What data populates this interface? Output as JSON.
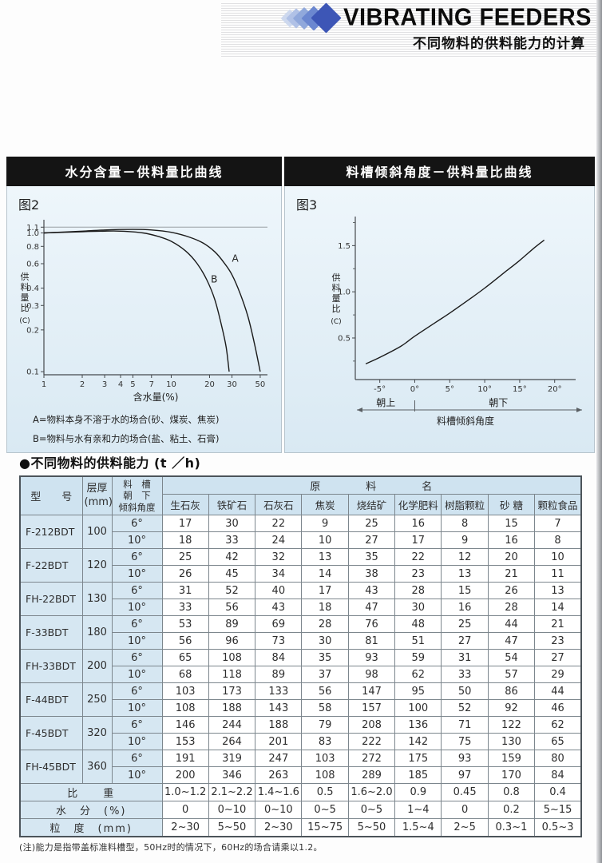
{
  "header": {
    "title": "VIBRATING FEEDERS",
    "subtitle": "不同物料的供料能力的计算"
  },
  "colors": {
    "diamond-colors": [
      "#cdd8ee",
      "#b0c1e6",
      "#90a8db",
      "#6b87d0",
      "#3d56b6"
    ]
  },
  "panels": [
    {
      "title": "水分含量－供料量比曲线",
      "figure_label": "图2",
      "notes": [
        "A=物料本身不溶于水的场合(砂、煤炭、焦炭)",
        "B=物料与水有亲和力的场合(盐、粘土、石膏)"
      ]
    },
    {
      "title": "料槽倾斜角度－供料量比曲线",
      "figure_label": "图3"
    }
  ],
  "chart_data": [
    {
      "type": "line",
      "title": "水分含量－供料量比曲线",
      "xlabel": "含水量(%)",
      "ylabel": "供料量比(C)",
      "xscale": "log",
      "yscale": "log",
      "xlim": [
        1,
        57
      ],
      "ylim": [
        0.095,
        1.18
      ],
      "xticks": [
        "1",
        "2",
        "3",
        "4",
        "5",
        "7",
        "10",
        "20",
        "30",
        "50"
      ],
      "yticks": [
        "1.1",
        "1.0",
        "0.8",
        "0.6",
        "0.4",
        "0.3",
        "0.2",
        "0.1"
      ],
      "gridlines_y": [
        1.1
      ],
      "legend_position": "none",
      "grid": "off",
      "series": [
        {
          "name": "A",
          "x": [
            1,
            2,
            3,
            5,
            7,
            10,
            14,
            18,
            22,
            26,
            30,
            35,
            40,
            45,
            50
          ],
          "y": [
            1.0,
            1.03,
            1.05,
            1.06,
            1.05,
            1.01,
            0.93,
            0.84,
            0.73,
            0.61,
            0.5,
            0.36,
            0.25,
            0.16,
            0.1
          ]
        },
        {
          "name": "B",
          "x": [
            1,
            2,
            3,
            4,
            6,
            8,
            10,
            13,
            16,
            19,
            22,
            25,
            27,
            28.5
          ],
          "y": [
            1.0,
            1.02,
            1.03,
            1.03,
            1.0,
            0.94,
            0.87,
            0.74,
            0.6,
            0.46,
            0.33,
            0.21,
            0.15,
            0.1
          ]
        }
      ],
      "annotations": [
        {
          "text": "A",
          "x": 30,
          "y": 0.62
        },
        {
          "text": "B",
          "x": 20.5,
          "y": 0.44
        }
      ]
    },
    {
      "type": "line",
      "title": "料槽倾斜角度－供料量比曲线",
      "xlabel": "料槽倾斜角度",
      "ylabel": "供料量比(C)",
      "xscale": "linear",
      "yscale": "linear",
      "xlim": [
        -8.5,
        23
      ],
      "ylim": [
        0.05,
        1.78
      ],
      "xticks": [
        "-5°",
        "0°",
        "5°",
        "10°",
        "15°",
        "20°"
      ],
      "yticks": [
        "0.5",
        "1.0",
        "1.5"
      ],
      "yticks_minor": [
        0.25,
        0.75,
        1.25,
        1.75
      ],
      "legend_position": "none",
      "grid": "off",
      "series": [
        {
          "name": "C",
          "x": [
            -7,
            -5,
            -2,
            0,
            3,
            5,
            8,
            10,
            13,
            15,
            17,
            18.5
          ],
          "y": [
            0.22,
            0.29,
            0.41,
            0.52,
            0.67,
            0.77,
            0.93,
            1.04,
            1.22,
            1.34,
            1.47,
            1.56
          ]
        }
      ],
      "direction_labels": {
        "left": "朝上",
        "right": "朝下"
      }
    }
  ],
  "table": {
    "section_title": "●不同物料的供料能力 (t ／h)",
    "headers": {
      "model": "型　　号",
      "layer": [
        "层厚",
        "(mm)"
      ],
      "angle": [
        "料　槽",
        "朝　下",
        "倾斜角度"
      ],
      "group": "原　　　　料　　　　名",
      "materials": [
        "生石灰",
        "铁矿石",
        "石灰石",
        "焦炭",
        "烧结矿",
        "化学肥料",
        "树脂颗粒",
        "砂 糖",
        "颗粒食品"
      ]
    },
    "rows": [
      {
        "model": "F-212BDT",
        "layer": "100",
        "angles": [
          {
            "deg": "6°",
            "values": [
              "17",
              "30",
              "22",
              "9",
              "25",
              "16",
              "8",
              "15",
              "7"
            ]
          },
          {
            "deg": "10°",
            "values": [
              "18",
              "33",
              "24",
              "10",
              "27",
              "17",
              "9",
              "16",
              "8"
            ]
          }
        ]
      },
      {
        "model": "F-22BDT",
        "layer": "120",
        "angles": [
          {
            "deg": "6°",
            "values": [
              "25",
              "42",
              "32",
              "13",
              "35",
              "22",
              "12",
              "20",
              "10"
            ]
          },
          {
            "deg": "10°",
            "values": [
              "26",
              "45",
              "34",
              "14",
              "38",
              "23",
              "13",
              "21",
              "11"
            ]
          }
        ]
      },
      {
        "model": "FH-22BDT",
        "layer": "130",
        "angles": [
          {
            "deg": "6°",
            "values": [
              "31",
              "52",
              "40",
              "17",
              "43",
              "28",
              "15",
              "26",
              "13"
            ]
          },
          {
            "deg": "10°",
            "values": [
              "33",
              "56",
              "43",
              "18",
              "47",
              "30",
              "16",
              "28",
              "14"
            ]
          }
        ]
      },
      {
        "model": "F-33BDT",
        "layer": "180",
        "angles": [
          {
            "deg": "6°",
            "values": [
              "53",
              "89",
              "69",
              "28",
              "76",
              "48",
              "25",
              "44",
              "21"
            ]
          },
          {
            "deg": "10°",
            "values": [
              "56",
              "96",
              "73",
              "30",
              "81",
              "51",
              "27",
              "47",
              "23"
            ]
          }
        ]
      },
      {
        "model": "FH-33BDT",
        "layer": "200",
        "angles": [
          {
            "deg": "6°",
            "values": [
              "65",
              "108",
              "84",
              "35",
              "93",
              "59",
              "31",
              "54",
              "27"
            ]
          },
          {
            "deg": "10°",
            "values": [
              "68",
              "118",
              "89",
              "37",
              "98",
              "62",
              "33",
              "57",
              "29"
            ]
          }
        ]
      },
      {
        "model": "F-44BDT",
        "layer": "250",
        "angles": [
          {
            "deg": "6°",
            "values": [
              "103",
              "173",
              "133",
              "56",
              "147",
              "95",
              "50",
              "86",
              "44"
            ]
          },
          {
            "deg": "10°",
            "values": [
              "108",
              "188",
              "143",
              "58",
              "157",
              "100",
              "52",
              "92",
              "46"
            ]
          }
        ]
      },
      {
        "model": "F-45BDT",
        "layer": "320",
        "angles": [
          {
            "deg": "6°",
            "values": [
              "146",
              "244",
              "188",
              "79",
              "208",
              "136",
              "71",
              "122",
              "62"
            ]
          },
          {
            "deg": "10°",
            "values": [
              "153",
              "264",
              "201",
              "83",
              "222",
              "142",
              "75",
              "130",
              "65"
            ]
          }
        ]
      },
      {
        "model": "FH-45BDT",
        "layer": "360",
        "angles": [
          {
            "deg": "6°",
            "values": [
              "191",
              "319",
              "247",
              "103",
              "272",
              "175",
              "93",
              "159",
              "80"
            ]
          },
          {
            "deg": "10°",
            "values": [
              "200",
              "346",
              "263",
              "108",
              "289",
              "185",
              "97",
              "170",
              "84"
            ]
          }
        ]
      }
    ],
    "summary_rows": [
      {
        "label": "比　　重",
        "values": [
          "1.0~1.2",
          "2.1~2.2",
          "1.4~1.6",
          "0.5",
          "1.6~2.0",
          "0.9",
          "0.45",
          "0.8",
          "0.4"
        ]
      },
      {
        "label": "水　分　(%)",
        "values": [
          "0",
          "0~10",
          "0~10",
          "0~5",
          "0~5",
          "1~4",
          "0",
          "0.2",
          "5~15"
        ]
      },
      {
        "label": "粒　度　(mm)",
        "values": [
          "2~30",
          "5~50",
          "2~30",
          "15~75",
          "5~50",
          "1.5~4",
          "2~5",
          "0.3~1",
          "0.5~3"
        ]
      }
    ],
    "footnote": "(注)能力是指带盖标准料槽型，50Hz时的情况下，60Hz的场合请乘以1.2。"
  }
}
